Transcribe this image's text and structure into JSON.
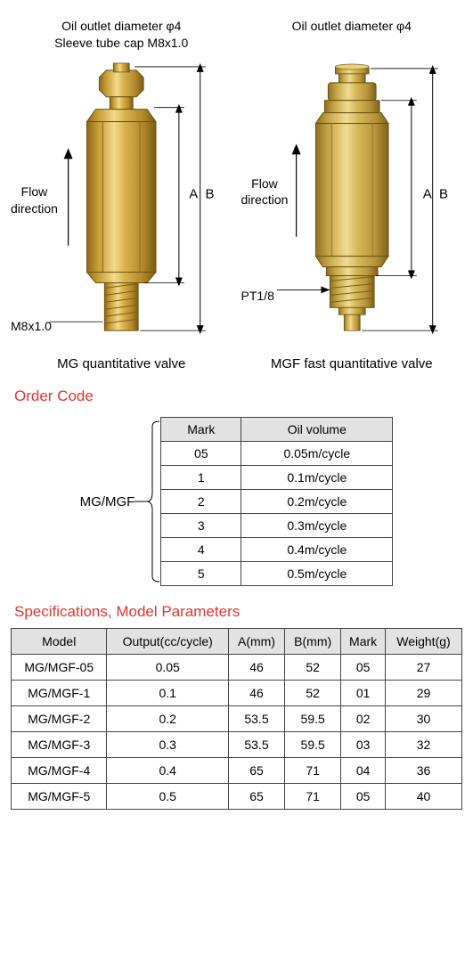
{
  "diagrams": {
    "left": {
      "line1": "Oil outlet diameter φ4",
      "line2": "Sleeve tube cap M8x1.0",
      "flow": "Flow\ndirection",
      "dimA": "A",
      "dimB": "B",
      "bottom": "M8x1.0",
      "caption": "MG quantitative valve"
    },
    "right": {
      "line1": "Oil outlet diameter φ4",
      "flow": "Flow\ndirection",
      "dimA": "A",
      "dimB": "B",
      "bottom": "PT1/8",
      "caption": "MGF fast quantitative valve"
    }
  },
  "order_code": {
    "title": "Order Code",
    "prefix": "MG/MGF",
    "columns": [
      "Mark",
      "Oil volume"
    ],
    "rows": [
      [
        "05",
        "0.05m/cycle"
      ],
      [
        "1",
        "0.1m/cycle"
      ],
      [
        "2",
        "0.2m/cycle"
      ],
      [
        "3",
        "0.3m/cycle"
      ],
      [
        "4",
        "0.4m/cycle"
      ],
      [
        "5",
        "0.5m/cycle"
      ]
    ]
  },
  "specs": {
    "title": "Specifications, Model Parameters",
    "columns": [
      "Model",
      "Output(cc/cycle)",
      "A(mm)",
      "B(mm)",
      "Mark",
      "Weight(g)"
    ],
    "rows": [
      [
        "MG/MGF-05",
        "0.05",
        "46",
        "52",
        "05",
        "27"
      ],
      [
        "MG/MGF-1",
        "0.1",
        "46",
        "52",
        "01",
        "29"
      ],
      [
        "MG/MGF-2",
        "0.2",
        "53.5",
        "59.5",
        "02",
        "30"
      ],
      [
        "MG/MGF-3",
        "0.3",
        "53.5",
        "59.5",
        "03",
        "32"
      ],
      [
        "MG/MGF-4",
        "0.4",
        "65",
        "71",
        "04",
        "36"
      ],
      [
        "MG/MGF-5",
        "0.5",
        "65",
        "71",
        "05",
        "40"
      ]
    ]
  },
  "style": {
    "brass_light": "#d9b24e",
    "brass_mid": "#c59a33",
    "brass_dark": "#8a6a1a",
    "brass_hi": "#f2da8a",
    "line_color": "#000000",
    "header_bg": "#e2e2e2",
    "accent": "#e3342f"
  }
}
